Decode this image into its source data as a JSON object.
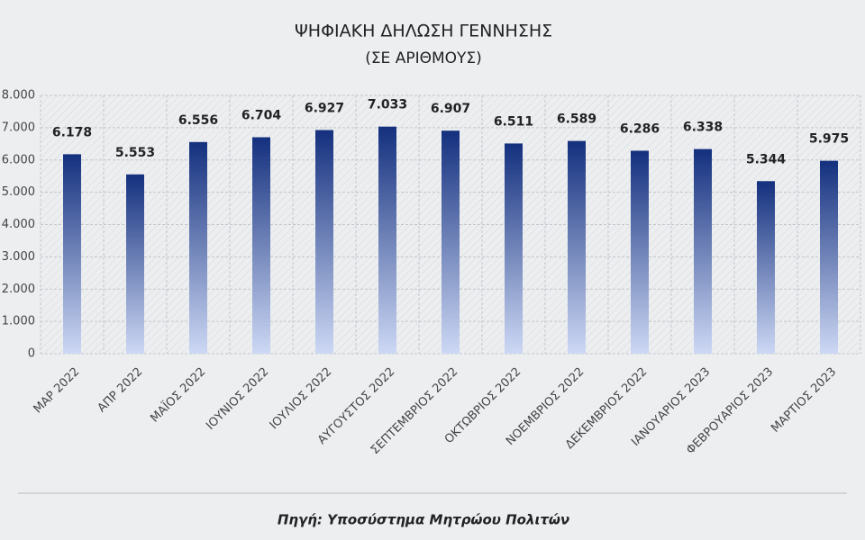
{
  "chart_data": {
    "type": "bar",
    "title": "ΨΗΦΙΑΚΗ ΔΗΛΩΣΗ  ΓΕΝΝΗΣΗΣ",
    "subtitle": "(ΣΕ ΑΡΙΘΜΟΥΣ)",
    "source": "Πηγή: Υποσύστημα Μητρώου Πολιτών",
    "categories": [
      "ΜΑΡ 2022",
      "ΑΠΡ 2022",
      "ΜΑΪΟΣ 2022",
      "ΙΟΥΝΙΟΣ 2022",
      "ΙΟΥΛΙΟΣ 2022",
      "ΑΥΓΟΥΣΤΟΣ 2022",
      "ΣΕΠΤΕΜΒΡΙΟΣ 2022",
      "ΟΚΤΩΒΡΙΟΣ 2022",
      "ΝΟΕΜΒΡΙΟΣ 2022",
      "ΔΕΚΕΜΒΡΙΟΣ 2022",
      "ΙΑΝΟΥΑΡΙΟΣ 2023",
      "ΦΕΒΡΟΥΑΡΙΟΣ 2023",
      "ΜΑΡΤΙΟΣ 2023"
    ],
    "values": [
      6178,
      5553,
      6556,
      6704,
      6927,
      7033,
      6907,
      6511,
      6589,
      6286,
      6338,
      5344,
      5975
    ],
    "value_labels": [
      "6.178",
      "5.553",
      "6.556",
      "6.704",
      "6.927",
      "7.033",
      "6.907",
      "6.511",
      "6.589",
      "6.286",
      "6.338",
      "5.344",
      "5.975"
    ],
    "color": "#14307e",
    "ylim": [
      0,
      8000
    ],
    "yticks": [
      0,
      {
        "value": 1000,
        "label": "1.000"
      },
      {
        "value": 2000,
        "label": "2.000"
      },
      {
        "value": 3000,
        "label": "3.000"
      },
      {
        "value": 4000,
        "label": "4.000"
      },
      {
        "value": 5000,
        "label": "5.000"
      },
      {
        "value": 6000,
        "label": "6.000"
      },
      {
        "value": 7000,
        "label": "7.000"
      },
      {
        "value": 8000,
        "label": "8.000"
      }
    ],
    "grid": true
  }
}
